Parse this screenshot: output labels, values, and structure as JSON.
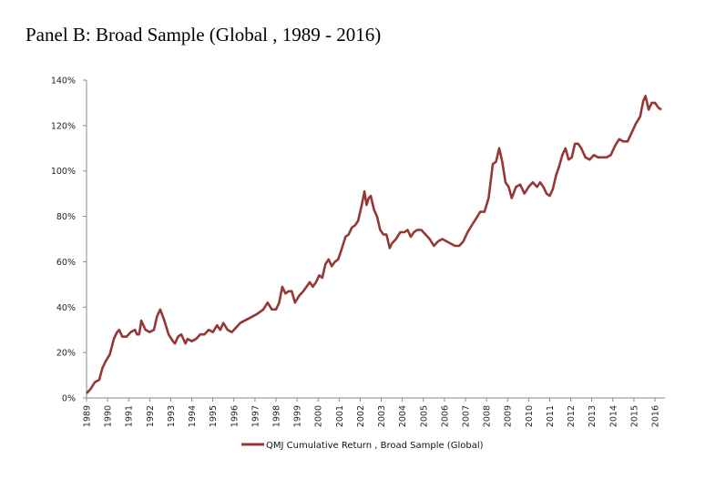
{
  "title": "Panel B: Broad Sample (Global , 1989 - 2016)",
  "chart_data": {
    "type": "line",
    "title": "Panel B: Broad Sample (Global , 1989 - 2016)",
    "xlabel": "",
    "ylabel": "",
    "ylim": [
      0,
      140
    ],
    "xlim": [
      1989,
      2016.5
    ],
    "y_ticks": [
      "0%",
      "20%",
      "40%",
      "60%",
      "80%",
      "100%",
      "120%",
      "140%"
    ],
    "y_tick_values": [
      0,
      20,
      40,
      60,
      80,
      100,
      120,
      140
    ],
    "x_ticks": [
      "1989",
      "1990",
      "1991",
      "1992",
      "1993",
      "1994",
      "1995",
      "1996",
      "1997",
      "1998",
      "1999",
      "2000",
      "2001",
      "2002",
      "2003",
      "2004",
      "2005",
      "2006",
      "2007",
      "2008",
      "2009",
      "2010",
      "2011",
      "2012",
      "2013",
      "2014",
      "2015",
      "2016"
    ],
    "grid": false,
    "legend": "bottom-center",
    "color": "#953735",
    "series": [
      {
        "name": "QMJ Cumulative Return , Broad Sample (Global)",
        "x": [
          1989.0,
          1989.2,
          1989.4,
          1989.6,
          1989.75,
          1989.9,
          1990.1,
          1990.3,
          1990.45,
          1990.55,
          1990.7,
          1990.9,
          1991.1,
          1991.3,
          1991.4,
          1991.5,
          1991.6,
          1991.8,
          1992.0,
          1992.2,
          1992.35,
          1992.5,
          1992.7,
          1992.9,
          1993.1,
          1993.2,
          1993.35,
          1993.5,
          1993.7,
          1993.8,
          1994.0,
          1994.2,
          1994.4,
          1994.6,
          1994.8,
          1995.0,
          1995.2,
          1995.35,
          1995.5,
          1995.7,
          1995.9,
          1996.1,
          1996.3,
          1996.5,
          1996.7,
          1996.9,
          1997.1,
          1997.25,
          1997.4,
          1997.6,
          1997.8,
          1998.0,
          1998.15,
          1998.3,
          1998.45,
          1998.6,
          1998.75,
          1998.9,
          1999.1,
          1999.3,
          1999.45,
          1999.6,
          1999.75,
          1999.9,
          2000.05,
          2000.2,
          2000.35,
          2000.5,
          2000.65,
          2000.8,
          2000.95,
          2001.1,
          2001.3,
          2001.45,
          2001.6,
          2001.75,
          2001.9,
          2002.05,
          2002.2,
          2002.3,
          2002.4,
          2002.5,
          2002.65,
          2002.8,
          2002.95,
          2003.1,
          2003.25,
          2003.4,
          2003.5,
          2003.7,
          2003.9,
          2004.1,
          2004.25,
          2004.4,
          2004.55,
          2004.7,
          2004.9,
          2005.1,
          2005.3,
          2005.5,
          2005.7,
          2005.9,
          2006.1,
          2006.3,
          2006.5,
          2006.7,
          2006.9,
          2007.1,
          2007.3,
          2007.5,
          2007.7,
          2007.9,
          2008.1,
          2008.3,
          2008.45,
          2008.6,
          2008.75,
          2008.9,
          2009.05,
          2009.2,
          2009.4,
          2009.6,
          2009.8,
          2010.0,
          2010.2,
          2010.4,
          2010.55,
          2010.7,
          2010.85,
          2011.0,
          2011.15,
          2011.3,
          2011.45,
          2011.6,
          2011.75,
          2011.9,
          2012.05,
          2012.2,
          2012.35,
          2012.5,
          2012.7,
          2012.9,
          2013.1,
          2013.3,
          2013.5,
          2013.7,
          2013.9,
          2014.1,
          2014.3,
          2014.5,
          2014.7,
          2014.9,
          2015.1,
          2015.3,
          2015.45,
          2015.55,
          2015.7,
          2015.85,
          2016.0,
          2016.15,
          2016.3
        ],
        "values": [
          2,
          4,
          7,
          8,
          13,
          16,
          19,
          26,
          29,
          30,
          27,
          27,
          29,
          30,
          28,
          28,
          34,
          30,
          29,
          30,
          36,
          39,
          34,
          28,
          25,
          24,
          27,
          28,
          24,
          26,
          25,
          26,
          28,
          28,
          30,
          29,
          32,
          30,
          33,
          30,
          29,
          31,
          33,
          34,
          35,
          36,
          37,
          38,
          39,
          42,
          39,
          39,
          42,
          49,
          46,
          47,
          47,
          42,
          45,
          47,
          49,
          51,
          49,
          51,
          54,
          53,
          59,
          61,
          58,
          60,
          61,
          65,
          71,
          72,
          75,
          76,
          78,
          84,
          91,
          85,
          88,
          89,
          83,
          80,
          74,
          72,
          72,
          66,
          68,
          70,
          73,
          73,
          74,
          71,
          73,
          74,
          74,
          72,
          70,
          67,
          69,
          70,
          69,
          68,
          67,
          67,
          69,
          73,
          76,
          79,
          82,
          82,
          88,
          103,
          104,
          110,
          104,
          95,
          93,
          88,
          93,
          94,
          90,
          93,
          95,
          93,
          95,
          93,
          90,
          89,
          92,
          98,
          102,
          107,
          110,
          105,
          106,
          112,
          112,
          110,
          106,
          105,
          107,
          106,
          106,
          106,
          107,
          111,
          114,
          113,
          113,
          117,
          121,
          124,
          131,
          133,
          127,
          130,
          130,
          128,
          127
        ]
      }
    ]
  }
}
